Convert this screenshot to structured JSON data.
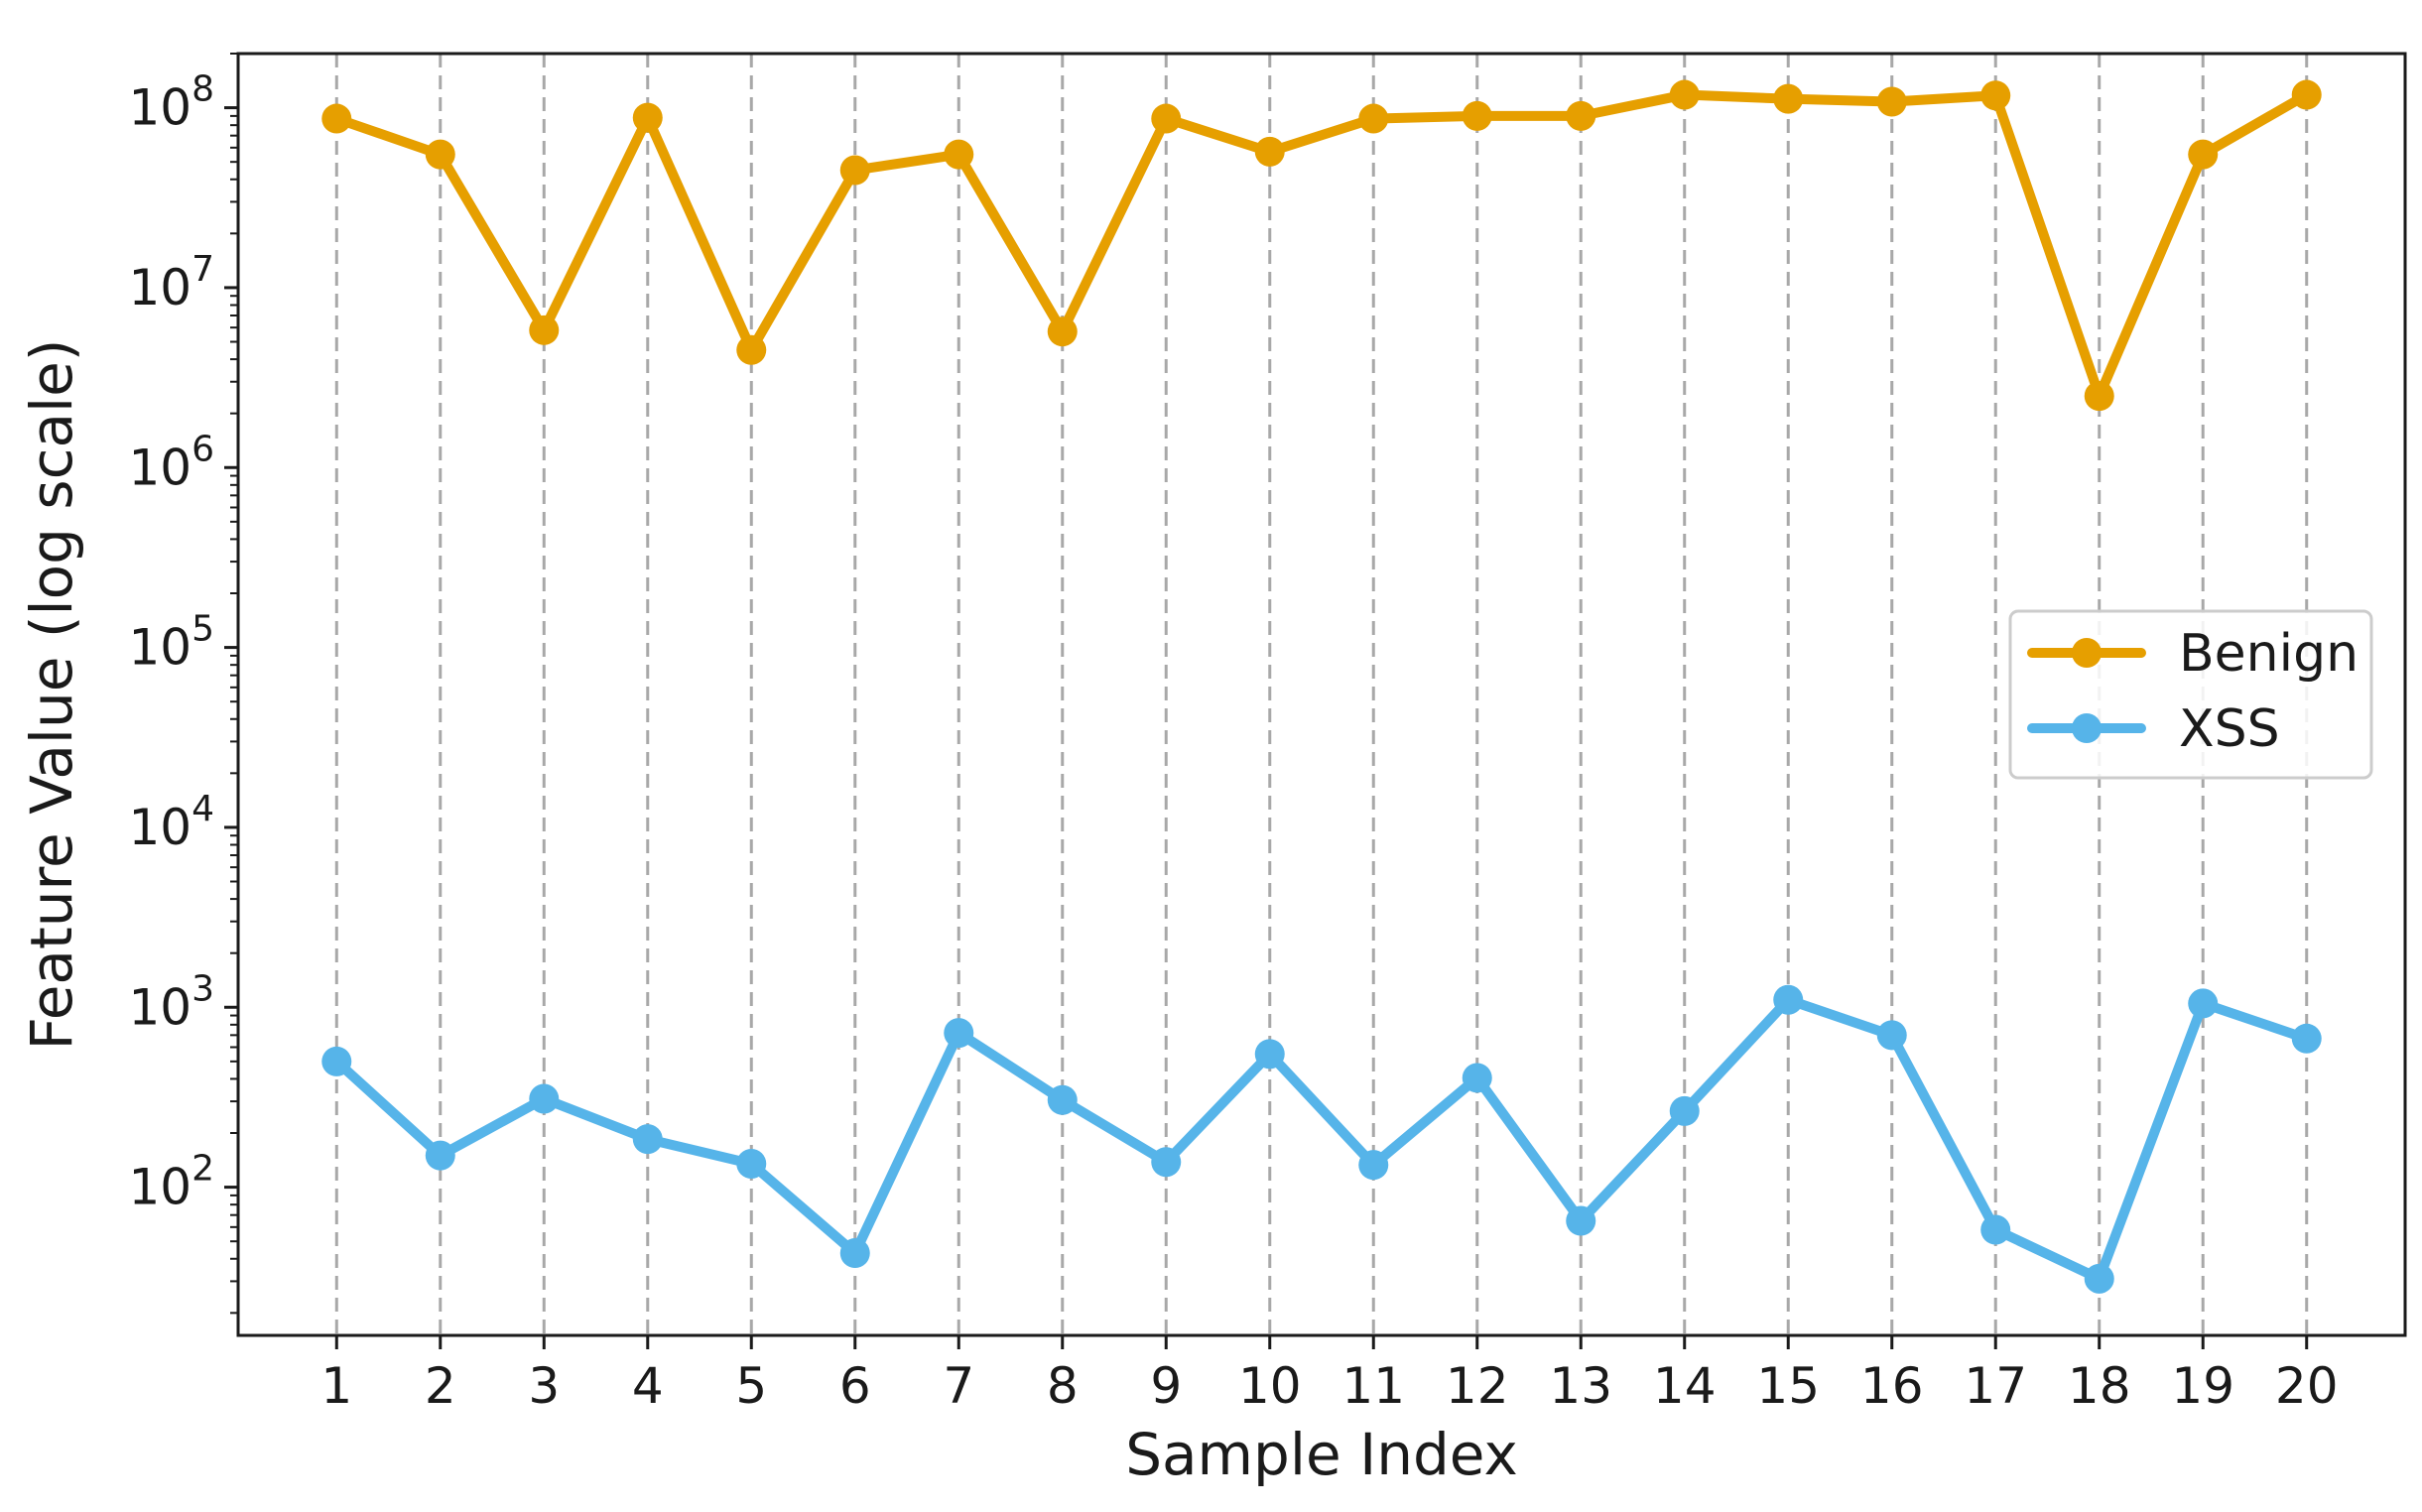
{
  "chart_data": {
    "type": "line",
    "title": "",
    "xlabel": "Sample Index",
    "ylabel": "Feature Value (log scale)",
    "y_scale": "log",
    "ylim": [
      15,
      200000000
    ],
    "y_tick_exponents": [
      2,
      3,
      4,
      5,
      6,
      7,
      8
    ],
    "y_tick_base": "10",
    "x": [
      1,
      2,
      3,
      4,
      5,
      6,
      7,
      8,
      9,
      10,
      11,
      12,
      13,
      14,
      15,
      16,
      17,
      18,
      19,
      20
    ],
    "xlim": [
      0.05,
      20.95
    ],
    "grid": "vertical dashed lines at each x tick",
    "legend_position": "center-right",
    "series": [
      {
        "name": "Benign",
        "color": "#E69F00",
        "values": [
          87000000,
          55000000,
          5800000,
          88000000,
          4500000,
          45000000,
          55000000,
          5700000,
          87000000,
          57000000,
          87000000,
          90000000,
          90000000,
          118000000,
          112000000,
          108000000,
          117000000,
          2500000,
          55000000,
          118000000
        ]
      },
      {
        "name": "XSS",
        "color": "#56B4E9",
        "values": [
          500,
          150,
          310,
          185,
          135,
          43,
          720,
          305,
          138,
          550,
          133,
          405,
          65,
          265,
          1100,
          700,
          58,
          31,
          1050,
          670
        ]
      }
    ]
  }
}
